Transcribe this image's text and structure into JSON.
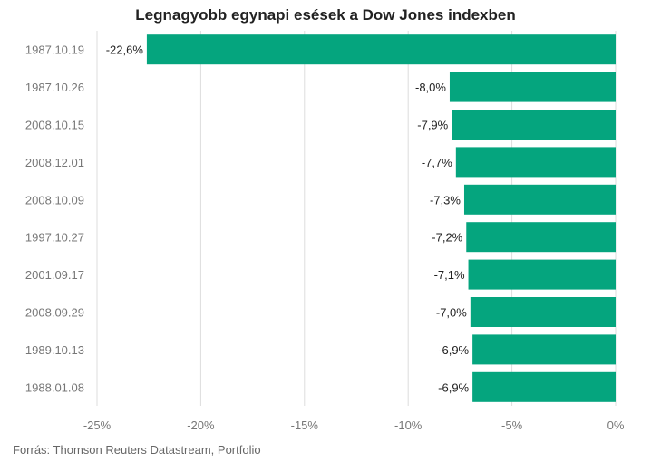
{
  "title": "Legnagyobb egynapi esések a Dow Jones indexben",
  "source": "Forrás: Thomson Reuters Datastream, Portfolio",
  "colors": {
    "bar": "#05a57e",
    "grid": "#dddddd",
    "axis_text": "#777777",
    "label_text": "#222222"
  },
  "chart_data": {
    "type": "bar",
    "orientation": "horizontal",
    "title": "Legnagyobb egynapi esések a Dow Jones indexben",
    "xlabel": "",
    "ylabel": "",
    "categories": [
      "1987.10.19",
      "1987.10.26",
      "2008.10.15",
      "2008.12.01",
      "2008.10.09",
      "1997.10.27",
      "2001.09.17",
      "2008.09.29",
      "1989.10.13",
      "1988.01.08"
    ],
    "values": [
      -22.6,
      -8.0,
      -7.9,
      -7.7,
      -7.3,
      -7.2,
      -7.1,
      -7.0,
      -6.9,
      -6.9
    ],
    "data_labels": [
      "-22,6%",
      "-8,0%",
      "-7,9%",
      "-7,7%",
      "-7,3%",
      "-7,2%",
      "-7,1%",
      "-7,0%",
      "-6,9%",
      "-6,9%"
    ],
    "xlim": [
      -25,
      0
    ],
    "x_ticks": [
      -25,
      -20,
      -15,
      -10,
      -5,
      0
    ],
    "x_tick_labels": [
      "-25%",
      "-20%",
      "-15%",
      "-10%",
      "-5%",
      "0%"
    ],
    "grid": true,
    "legend": "none"
  }
}
